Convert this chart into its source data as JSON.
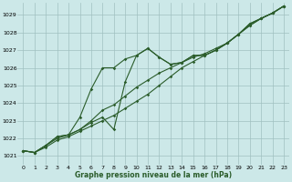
{
  "xlabel": "Graphe pression niveau de la mer (hPa)",
  "ylim": [
    1020.5,
    1029.7
  ],
  "xlim": [
    -0.5,
    23.5
  ],
  "xticks": [
    0,
    1,
    2,
    3,
    4,
    5,
    6,
    7,
    8,
    9,
    10,
    11,
    12,
    13,
    14,
    15,
    16,
    17,
    18,
    19,
    20,
    21,
    22,
    23
  ],
  "yticks": [
    1021,
    1022,
    1023,
    1024,
    1025,
    1026,
    1027,
    1028,
    1029
  ],
  "bg_color": "#cce8e8",
  "grid_color": "#a0c0c0",
  "line_color": "#2a5c2a",
  "line1_x": [
    0,
    1,
    2,
    3,
    4,
    5,
    6,
    7,
    8,
    9,
    10,
    11,
    12,
    13,
    14,
    15,
    16,
    17,
    18,
    19,
    20,
    21,
    22,
    23
  ],
  "line1_y": [
    1021.3,
    1021.2,
    1021.6,
    1022.1,
    1022.2,
    1022.5,
    1022.9,
    1023.2,
    1022.5,
    1025.2,
    1026.7,
    1027.1,
    1026.6,
    1026.2,
    1026.3,
    1026.7,
    1026.7,
    1027.0,
    1027.4,
    1027.9,
    1028.5,
    1028.8,
    1029.1,
    1029.5
  ],
  "line2_x": [
    0,
    1,
    2,
    3,
    4,
    5,
    6,
    7,
    8,
    9,
    10,
    11,
    12,
    13,
    14,
    15,
    16,
    17,
    18,
    19,
    20,
    21,
    22,
    23
  ],
  "line2_y": [
    1021.3,
    1021.2,
    1021.6,
    1022.1,
    1022.2,
    1023.2,
    1024.8,
    1026.0,
    1026.0,
    1026.5,
    1026.7,
    1027.1,
    1026.6,
    1026.2,
    1026.3,
    1026.7,
    1026.7,
    1027.0,
    1027.4,
    1027.9,
    1028.5,
    1028.8,
    1029.1,
    1029.5
  ],
  "line3_x": [
    0,
    1,
    2,
    3,
    4,
    5,
    6,
    7,
    8,
    9,
    10,
    11,
    12,
    13,
    14,
    15,
    16,
    17,
    18,
    19,
    20,
    21,
    22,
    23
  ],
  "line3_y": [
    1021.3,
    1021.2,
    1021.5,
    1021.9,
    1022.1,
    1022.4,
    1022.7,
    1023.0,
    1023.3,
    1023.7,
    1024.1,
    1024.5,
    1025.0,
    1025.5,
    1026.0,
    1026.35,
    1026.7,
    1027.0,
    1027.4,
    1027.9,
    1028.4,
    1028.8,
    1029.1,
    1029.5
  ],
  "line4_x": [
    0,
    1,
    2,
    3,
    4,
    5,
    6,
    7,
    8,
    9,
    10,
    11,
    12,
    13,
    14,
    15,
    16,
    17,
    18,
    19,
    20,
    21,
    22,
    23
  ],
  "line4_y": [
    1021.3,
    1021.2,
    1021.6,
    1022.0,
    1022.2,
    1022.5,
    1023.0,
    1023.6,
    1023.9,
    1024.4,
    1024.9,
    1025.3,
    1025.7,
    1026.0,
    1026.3,
    1026.6,
    1026.8,
    1027.1,
    1027.4,
    1027.9,
    1028.4,
    1028.8,
    1029.1,
    1029.5
  ],
  "tick_fontsize": 4.5,
  "xlabel_fontsize": 5.5
}
